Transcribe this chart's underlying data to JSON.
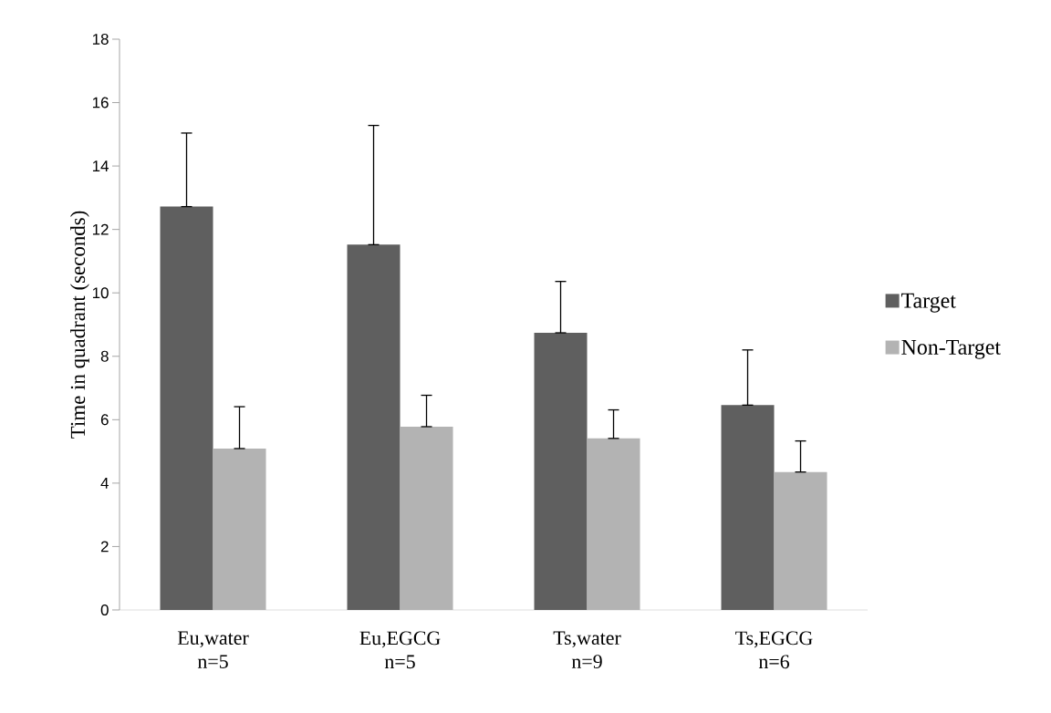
{
  "chart_data": {
    "type": "bar",
    "ylabel": "Time in quadrant (seconds)",
    "categories": [
      "Eu,water n=5",
      "Eu,EGCG n=5",
      "Ts,water n=9",
      "Ts,EGCG n=6"
    ],
    "series": [
      {
        "name": "Target",
        "color": "#5f5f5f",
        "values": [
          12.72,
          11.52,
          8.74,
          6.46
        ],
        "errors": [
          [
            12.72,
            15.04
          ],
          [
            11.52,
            15.28
          ],
          [
            8.74,
            10.36
          ],
          [
            6.46,
            8.2
          ]
        ]
      },
      {
        "name": "Non-Target",
        "color": "#b3b3b3",
        "values": [
          5.09,
          5.78,
          5.41,
          4.35
        ],
        "errors": [
          [
            5.09,
            6.41
          ],
          [
            5.78,
            6.77
          ],
          [
            5.41,
            6.31
          ],
          [
            4.35,
            5.33
          ]
        ]
      }
    ],
    "ylim": [
      0,
      18
    ],
    "yticks": [
      0,
      2,
      4,
      6,
      8,
      10,
      12,
      14,
      16,
      18
    ],
    "legend": "right"
  }
}
